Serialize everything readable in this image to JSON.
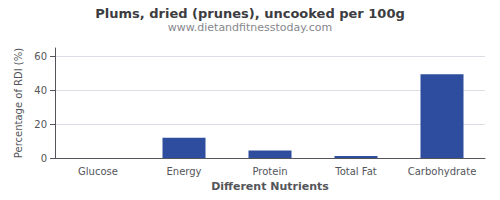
{
  "chart_data": {
    "type": "bar",
    "title": "Plums, dried (prunes), uncooked per 100g",
    "subtitle": "www.dietandfitnesstoday.com",
    "xlabel": "Different Nutrients",
    "ylabel": "Percentage of RDI (%)",
    "categories": [
      "Glucose",
      "Energy",
      "Protein",
      "Total Fat",
      "Carbohydrate"
    ],
    "values": [
      0,
      12,
      4.5,
      1.2,
      49.5
    ],
    "color": "#2e4d9e",
    "ylim": [
      0,
      65
    ],
    "yticks": [
      0,
      20,
      40,
      60
    ],
    "grid": true
  }
}
